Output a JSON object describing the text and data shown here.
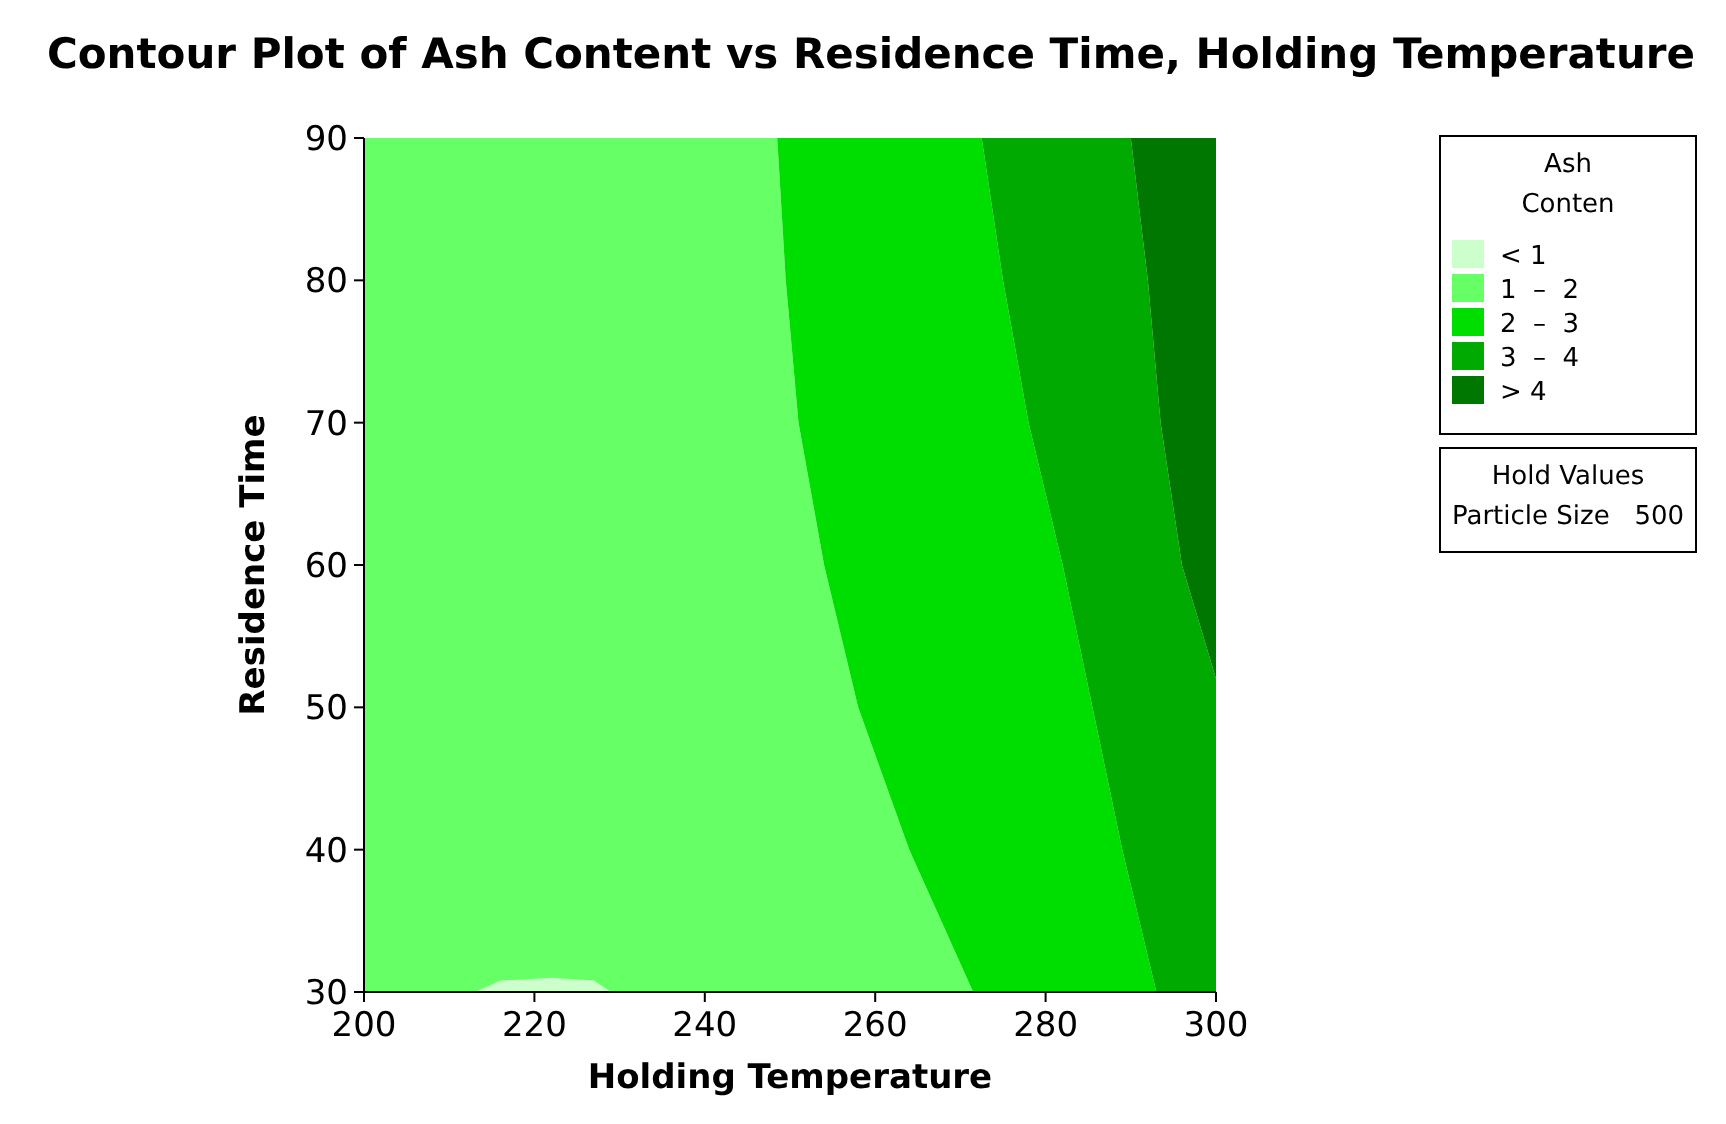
{
  "chart_data": {
    "type": "area",
    "title": "Contour Plot of Ash Content vs Residence Time, Holding Temperature",
    "xlabel": "Holding Temperature",
    "ylabel": "Residence Time",
    "legend_title": "Ash\nConten",
    "legend": "top right",
    "xlim": [
      200,
      300
    ],
    "ylim": [
      30,
      90
    ],
    "xticks": [
      200,
      220,
      240,
      260,
      280,
      300
    ],
    "yticks": [
      30,
      40,
      50,
      60,
      70,
      80,
      90
    ],
    "annotations": [
      "Hold Values",
      "Particle Size   500"
    ],
    "series": [
      {
        "name": "< 1",
        "color": "#ccffcc",
        "x": [
          213,
          216,
          222,
          227,
          229
        ],
        "values": [
          30,
          30.8,
          31,
          30.8,
          30
        ]
      },
      {
        "name": "1  –  2",
        "color": "#66ff66",
        "x": [
          200,
          248.5,
          249.5,
          251,
          254,
          258,
          264,
          271.5,
          200
        ],
        "values": [
          90,
          90,
          80,
          70,
          60,
          50,
          40,
          30,
          30
        ]
      },
      {
        "name": "2  –  3",
        "color": "#00dd00",
        "x": [
          248.5,
          249.5,
          251,
          254,
          258,
          264,
          271.5,
          293,
          289,
          285.5,
          282,
          278,
          275,
          272.5
        ],
        "values": [
          90,
          80,
          70,
          60,
          50,
          40,
          30,
          30,
          40,
          50,
          60,
          70,
          80,
          90
        ]
      },
      {
        "name": "3  –  4",
        "color": "#00aa00",
        "x": [
          272.5,
          275,
          278,
          282,
          285.5,
          289,
          293,
          300,
          300,
          296,
          293.5,
          292,
          290
        ],
        "values": [
          90,
          80,
          70,
          60,
          50,
          40,
          30,
          30,
          52,
          60,
          70,
          80,
          90
        ]
      },
      {
        "name": "> 4",
        "color": "#007700",
        "x": [
          290,
          292,
          293.5,
          296,
          300,
          300
        ],
        "values": [
          90,
          80,
          70,
          60,
          52,
          90
        ]
      }
    ]
  }
}
